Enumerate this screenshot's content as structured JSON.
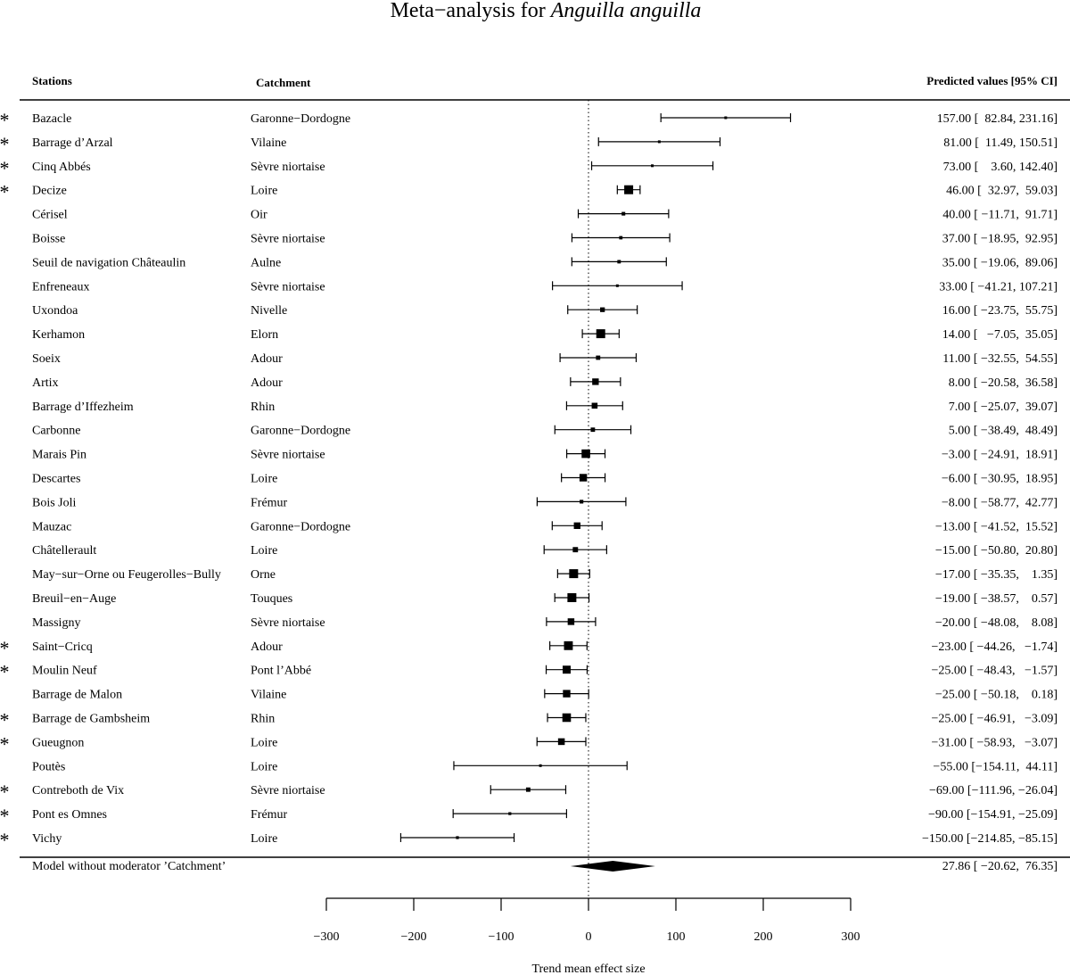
{
  "chart_data": {
    "type": "forest",
    "title_prefix": "Meta−analysis for ",
    "title_species": "Anguilla anguilla",
    "headers": {
      "stations": "Stations",
      "catchment": "Catchment",
      "predicted": "Predicted values [95% CI]"
    },
    "xlabel": "Trend mean effect size",
    "xlim": [
      -300,
      300
    ],
    "ticks": [
      -300,
      -200,
      -100,
      0,
      100,
      200,
      300
    ],
    "tick_labels": [
      "−300",
      "−200",
      "−100",
      "0",
      "100",
      "200",
      "300"
    ],
    "reference_line": 0,
    "marker_symbol": "*",
    "rows": [
      {
        "station": "Bazacle",
        "catchment": "Garonne−Dordogne",
        "est": 157.0,
        "lo": 82.84,
        "hi": 231.16,
        "marked": true,
        "label": "157.00 [  82.84, 231.16]"
      },
      {
        "station": "Barrage d’Arzal",
        "catchment": "Vilaine",
        "est": 81.0,
        "lo": 11.49,
        "hi": 150.51,
        "marked": true,
        "label": "81.00 [  11.49, 150.51]"
      },
      {
        "station": "Cinq Abbés",
        "catchment": "Sèvre niortaise",
        "est": 73.0,
        "lo": 3.6,
        "hi": 142.4,
        "marked": true,
        "label": "73.00 [    3.60, 142.40]"
      },
      {
        "station": "Decize",
        "catchment": "Loire",
        "est": 46.0,
        "lo": 32.97,
        "hi": 59.03,
        "marked": true,
        "label": "46.00 [  32.97,  59.03]"
      },
      {
        "station": "Cérisel",
        "catchment": "Oir",
        "est": 40.0,
        "lo": -11.71,
        "hi": 91.71,
        "marked": false,
        "label": "40.00 [ −11.71,  91.71]"
      },
      {
        "station": "Boisse",
        "catchment": "Sèvre niortaise",
        "est": 37.0,
        "lo": -18.95,
        "hi": 92.95,
        "marked": false,
        "label": "37.00 [ −18.95,  92.95]"
      },
      {
        "station": "Seuil de navigation Châteaulin",
        "catchment": "Aulne",
        "est": 35.0,
        "lo": -19.06,
        "hi": 89.06,
        "marked": false,
        "label": "35.00 [ −19.06,  89.06]"
      },
      {
        "station": "Enfreneaux",
        "catchment": "Sèvre niortaise",
        "est": 33.0,
        "lo": -41.21,
        "hi": 107.21,
        "marked": false,
        "label": "33.00 [ −41.21, 107.21]"
      },
      {
        "station": "Uxondoa",
        "catchment": "Nivelle",
        "est": 16.0,
        "lo": -23.75,
        "hi": 55.75,
        "marked": false,
        "label": "16.00 [ −23.75,  55.75]"
      },
      {
        "station": "Kerhamon",
        "catchment": "Elorn",
        "est": 14.0,
        "lo": -7.05,
        "hi": 35.05,
        "marked": false,
        "label": "14.00 [   −7.05,  35.05]"
      },
      {
        "station": "Soeix",
        "catchment": "Adour",
        "est": 11.0,
        "lo": -32.55,
        "hi": 54.55,
        "marked": false,
        "label": "11.00 [ −32.55,  54.55]"
      },
      {
        "station": "Artix",
        "catchment": "Adour",
        "est": 8.0,
        "lo": -20.58,
        "hi": 36.58,
        "marked": false,
        "label": "8.00 [ −20.58,  36.58]"
      },
      {
        "station": "Barrage d’Iffezheim",
        "catchment": "Rhin",
        "est": 7.0,
        "lo": -25.07,
        "hi": 39.07,
        "marked": false,
        "label": "7.00 [ −25.07,  39.07]"
      },
      {
        "station": "Carbonne",
        "catchment": "Garonne−Dordogne",
        "est": 5.0,
        "lo": -38.49,
        "hi": 48.49,
        "marked": false,
        "label": "5.00 [ −38.49,  48.49]"
      },
      {
        "station": "Marais Pin",
        "catchment": "Sèvre niortaise",
        "est": -3.0,
        "lo": -24.91,
        "hi": 18.91,
        "marked": false,
        "label": "−3.00 [ −24.91,  18.91]"
      },
      {
        "station": "Descartes",
        "catchment": "Loire",
        "est": -6.0,
        "lo": -30.95,
        "hi": 18.95,
        "marked": false,
        "label": "−6.00 [ −30.95,  18.95]"
      },
      {
        "station": "Bois Joli",
        "catchment": "Frémur",
        "est": -8.0,
        "lo": -58.77,
        "hi": 42.77,
        "marked": false,
        "label": "−8.00 [ −58.77,  42.77]"
      },
      {
        "station": "Mauzac",
        "catchment": "Garonne−Dordogne",
        "est": -13.0,
        "lo": -41.52,
        "hi": 15.52,
        "marked": false,
        "label": "−13.00 [ −41.52,  15.52]"
      },
      {
        "station": "Châtellerault",
        "catchment": "Loire",
        "est": -15.0,
        "lo": -50.8,
        "hi": 20.8,
        "marked": false,
        "label": "−15.00 [ −50.80,  20.80]"
      },
      {
        "station": "May−sur−Orne ou Feugerolles−Bully",
        "catchment": "Orne",
        "est": -17.0,
        "lo": -35.35,
        "hi": 1.35,
        "marked": false,
        "label": "−17.00 [ −35.35,    1.35]"
      },
      {
        "station": "Breuil−en−Auge",
        "catchment": "Touques",
        "est": -19.0,
        "lo": -38.57,
        "hi": 0.57,
        "marked": false,
        "label": "−19.00 [ −38.57,    0.57]"
      },
      {
        "station": "Massigny",
        "catchment": "Sèvre niortaise",
        "est": -20.0,
        "lo": -48.08,
        "hi": 8.08,
        "marked": false,
        "label": "−20.00 [ −48.08,    8.08]"
      },
      {
        "station": "Saint−Cricq",
        "catchment": "Adour",
        "est": -23.0,
        "lo": -44.26,
        "hi": -1.74,
        "marked": true,
        "label": "−23.00 [ −44.26,   −1.74]"
      },
      {
        "station": "Moulin Neuf",
        "catchment": "Pont l’Abbé",
        "est": -25.0,
        "lo": -48.43,
        "hi": -1.57,
        "marked": true,
        "label": "−25.00 [ −48.43,   −1.57]"
      },
      {
        "station": "Barrage de Malon",
        "catchment": "Vilaine",
        "est": -25.0,
        "lo": -50.18,
        "hi": 0.18,
        "marked": false,
        "label": "−25.00 [ −50.18,    0.18]"
      },
      {
        "station": "Barrage de Gambsheim",
        "catchment": "Rhin",
        "est": -25.0,
        "lo": -46.91,
        "hi": -3.09,
        "marked": true,
        "label": "−25.00 [ −46.91,   −3.09]"
      },
      {
        "station": "Gueugnon",
        "catchment": "Loire",
        "est": -31.0,
        "lo": -58.93,
        "hi": -3.07,
        "marked": true,
        "label": "−31.00 [ −58.93,   −3.07]"
      },
      {
        "station": "Poutès",
        "catchment": "Loire",
        "est": -55.0,
        "lo": -154.11,
        "hi": 44.11,
        "marked": false,
        "label": "−55.00 [−154.11,  44.11]"
      },
      {
        "station": "Contreboth de Vix",
        "catchment": "Sèvre niortaise",
        "est": -69.0,
        "lo": -111.96,
        "hi": -26.04,
        "marked": true,
        "label": "−69.00 [−111.96, −26.04]"
      },
      {
        "station": "Pont es Omnes",
        "catchment": "Frémur",
        "est": -90.0,
        "lo": -154.91,
        "hi": -25.09,
        "marked": true,
        "label": "−90.00 [−154.91, −25.09]"
      },
      {
        "station": "Vichy",
        "catchment": "Loire",
        "est": -150.0,
        "lo": -214.85,
        "hi": -85.15,
        "marked": true,
        "label": "−150.00 [−214.85, −85.15]"
      }
    ],
    "summary": {
      "label_text": "Model without moderator ’Catchment’",
      "est": 27.86,
      "lo": -20.62,
      "hi": 76.35,
      "label": "27.86 [ −20.62,  76.35]"
    }
  }
}
